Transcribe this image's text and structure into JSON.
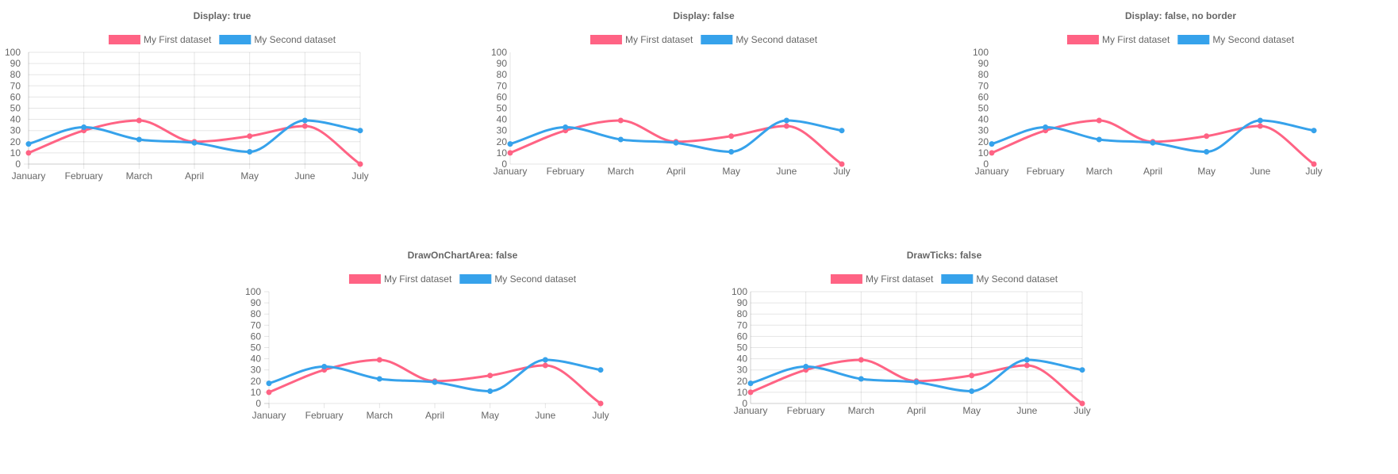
{
  "chart_data": [
    {
      "type": "line",
      "title": "Display: true",
      "categories": [
        "January",
        "February",
        "March",
        "April",
        "May",
        "June",
        "July"
      ],
      "series": [
        {
          "name": "My First dataset",
          "values": [
            10,
            30,
            39,
            20,
            25,
            34,
            0
          ],
          "color": "#ff6384"
        },
        {
          "name": "My Second dataset",
          "values": [
            18,
            33,
            22,
            19,
            11,
            39,
            30
          ],
          "color": "#36a2eb"
        }
      ],
      "ylim": [
        0,
        100
      ],
      "y_ticks": [
        0,
        10,
        20,
        30,
        40,
        50,
        60,
        70,
        80,
        90,
        100
      ],
      "legend": "top",
      "grid": {
        "display": true,
        "border": true,
        "drawOnChartArea": true,
        "drawTicks": true
      }
    },
    {
      "type": "line",
      "title": "Display: false",
      "categories": [
        "January",
        "February",
        "March",
        "April",
        "May",
        "June",
        "July"
      ],
      "series": [
        {
          "name": "My First dataset",
          "values": [
            10,
            30,
            39,
            20,
            25,
            34,
            0
          ],
          "color": "#ff6384"
        },
        {
          "name": "My Second dataset",
          "values": [
            18,
            33,
            22,
            19,
            11,
            39,
            30
          ],
          "color": "#36a2eb"
        }
      ],
      "ylim": [
        0,
        100
      ],
      "y_ticks": [
        0,
        10,
        20,
        30,
        40,
        50,
        60,
        70,
        80,
        90,
        100
      ],
      "legend": "top",
      "grid": {
        "display": false,
        "border": true,
        "drawOnChartArea": false,
        "drawTicks": false
      }
    },
    {
      "type": "line",
      "title": "Display: false, no border",
      "categories": [
        "January",
        "February",
        "March",
        "April",
        "May",
        "June",
        "July"
      ],
      "series": [
        {
          "name": "My First dataset",
          "values": [
            10,
            30,
            39,
            20,
            25,
            34,
            0
          ],
          "color": "#ff6384"
        },
        {
          "name": "My Second dataset",
          "values": [
            18,
            33,
            22,
            19,
            11,
            39,
            30
          ],
          "color": "#36a2eb"
        }
      ],
      "ylim": [
        0,
        100
      ],
      "y_ticks": [
        0,
        10,
        20,
        30,
        40,
        50,
        60,
        70,
        80,
        90,
        100
      ],
      "legend": "top",
      "grid": {
        "display": false,
        "border": false,
        "drawOnChartArea": false,
        "drawTicks": false
      }
    },
    {
      "type": "line",
      "title": "DrawOnChartArea: false",
      "categories": [
        "January",
        "February",
        "March",
        "April",
        "May",
        "June",
        "July"
      ],
      "series": [
        {
          "name": "My First dataset",
          "values": [
            10,
            30,
            39,
            20,
            25,
            34,
            0
          ],
          "color": "#ff6384"
        },
        {
          "name": "My Second dataset",
          "values": [
            18,
            33,
            22,
            19,
            11,
            39,
            30
          ],
          "color": "#36a2eb"
        }
      ],
      "ylim": [
        0,
        100
      ],
      "y_ticks": [
        0,
        10,
        20,
        30,
        40,
        50,
        60,
        70,
        80,
        90,
        100
      ],
      "legend": "top",
      "grid": {
        "display": true,
        "border": true,
        "drawOnChartArea": false,
        "drawTicks": true
      }
    },
    {
      "type": "line",
      "title": "DrawTicks: false",
      "categories": [
        "January",
        "February",
        "March",
        "April",
        "May",
        "June",
        "July"
      ],
      "series": [
        {
          "name": "My First dataset",
          "values": [
            10,
            30,
            39,
            20,
            25,
            34,
            0
          ],
          "color": "#ff6384"
        },
        {
          "name": "My Second dataset",
          "values": [
            18,
            33,
            22,
            19,
            11,
            39,
            30
          ],
          "color": "#36a2eb"
        }
      ],
      "ylim": [
        0,
        100
      ],
      "y_ticks": [
        0,
        10,
        20,
        30,
        40,
        50,
        60,
        70,
        80,
        90,
        100
      ],
      "legend": "top",
      "grid": {
        "display": true,
        "border": true,
        "drawOnChartArea": true,
        "drawTicks": false
      }
    }
  ]
}
